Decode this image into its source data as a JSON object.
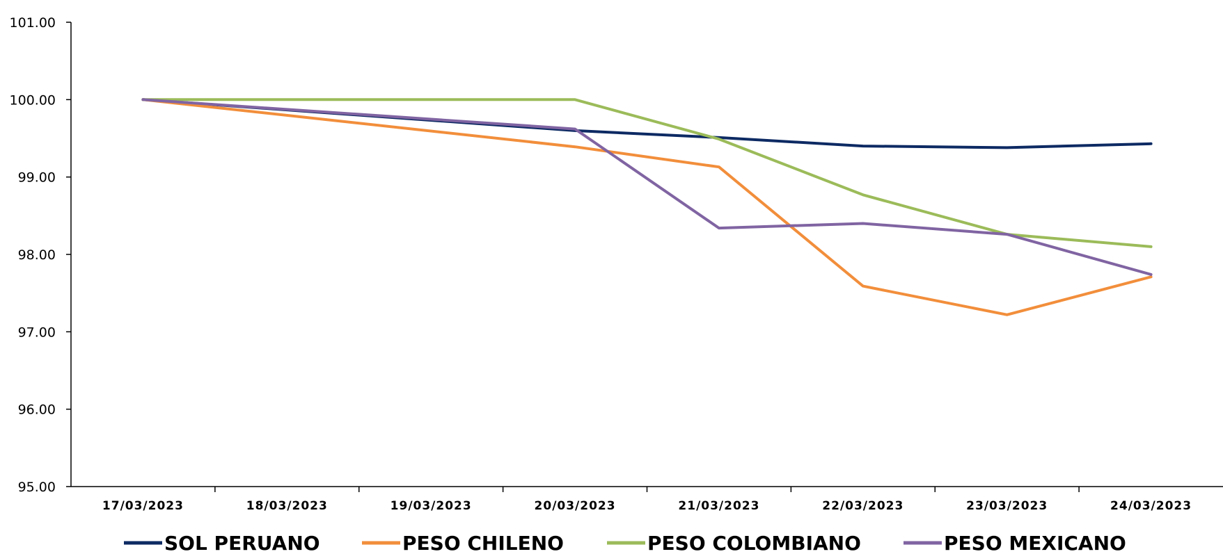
{
  "chart_data": {
    "type": "line",
    "x": [
      "17/03/2023",
      "18/03/2023",
      "19/03/2023",
      "20/03/2023",
      "21/03/2023",
      "22/03/2023",
      "23/03/2023",
      "24/03/2023"
    ],
    "ylim": [
      95.0,
      101.0
    ],
    "yticks": [
      "95.00",
      "96.00",
      "97.00",
      "98.00",
      "99.00",
      "100.00",
      "101.00"
    ],
    "grid": false,
    "legend_position": "bottom",
    "series": [
      {
        "name": "SOL PERUANO",
        "color": "#0d2a63",
        "points": [
          [
            0,
            100.0
          ],
          [
            3,
            99.6
          ],
          [
            4,
            99.51
          ],
          [
            5,
            99.4
          ],
          [
            6,
            99.38
          ],
          [
            7,
            99.43
          ]
        ]
      },
      {
        "name": "PESO CHILENO",
        "color": "#f28e3b",
        "points": [
          [
            0,
            100.0
          ],
          [
            3,
            99.39
          ],
          [
            4,
            99.13
          ],
          [
            5,
            97.59
          ],
          [
            6,
            97.22
          ],
          [
            7,
            97.71
          ]
        ]
      },
      {
        "name": "PESO COLOMBIANO",
        "color": "#9bbb59",
        "points": [
          [
            0,
            100.0
          ],
          [
            3,
            100.0
          ],
          [
            4,
            99.49
          ],
          [
            5,
            98.77
          ],
          [
            6,
            98.26
          ],
          [
            7,
            98.1
          ]
        ]
      },
      {
        "name": "PESO MEXICANO",
        "color": "#8064a2",
        "points": [
          [
            0,
            100.0
          ],
          [
            3,
            99.62
          ],
          [
            4,
            98.34
          ],
          [
            5,
            98.4
          ],
          [
            6,
            98.26
          ],
          [
            7,
            97.74
          ]
        ]
      }
    ]
  }
}
